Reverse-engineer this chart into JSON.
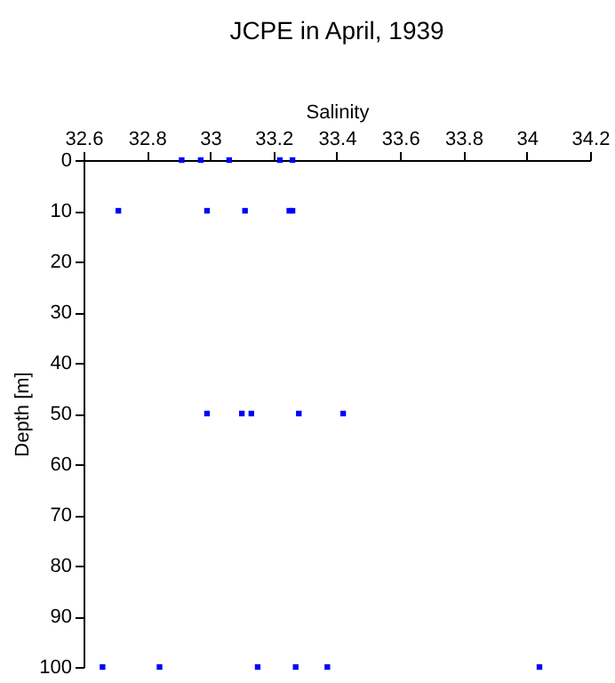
{
  "chart_data": {
    "type": "scatter",
    "title": "JCPE in April, 1939",
    "xlabel": "Salinity",
    "ylabel": "Depth [m]",
    "x": [
      32.91,
      32.97,
      33.06,
      33.22,
      33.26,
      32.71,
      32.99,
      33.11,
      33.25,
      33.26,
      32.99,
      33.1,
      33.13,
      33.28,
      33.42,
      32.66,
      32.84,
      33.15,
      33.27,
      33.37,
      34.04
    ],
    "series": [
      {
        "color": "#0000ff",
        "values": [
          0,
          0,
          0,
          0,
          0,
          10,
          10,
          10,
          10,
          10,
          50,
          50,
          50,
          50,
          50,
          100,
          100,
          100,
          100,
          100,
          100
        ]
      }
    ],
    "xlim": [
      32.6,
      34.2
    ],
    "xticks": [
      32.6,
      32.8,
      33,
      33.2,
      33.4,
      33.6,
      33.8,
      34,
      34.2
    ],
    "ylim": [
      100,
      0
    ],
    "yticks": [
      0,
      10,
      20,
      30,
      40,
      50,
      60,
      70,
      80,
      90,
      100
    ],
    "grid": false,
    "marker": "square"
  }
}
